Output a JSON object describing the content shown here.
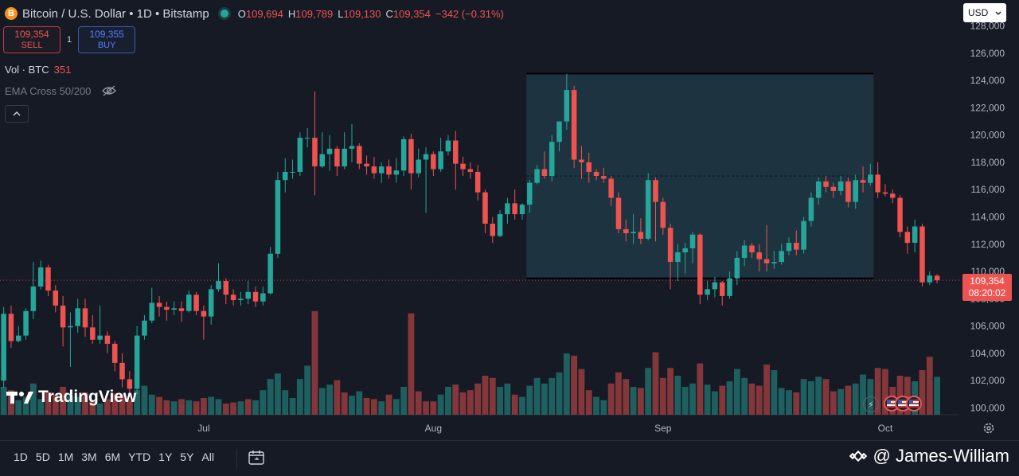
{
  "header": {
    "coin_letter": "B",
    "title": "Bitcoin / U.S. Dollar • 1D • Bitstamp",
    "ohlc": [
      {
        "key": "O",
        "value": "109,694"
      },
      {
        "key": "H",
        "value": "109,789"
      },
      {
        "key": "L",
        "value": "109,130"
      },
      {
        "key": "C",
        "value": "109,354"
      }
    ],
    "change": "−342 (−0.31%)"
  },
  "trade": {
    "sell_price": "109,354",
    "sell_label": "SELL",
    "spread": "1",
    "buy_price": "109,355",
    "buy_label": "BUY"
  },
  "indicators": {
    "vol_label": "Vol · BTC",
    "vol_value": "351",
    "ema_label": "EMA Cross 50/200"
  },
  "currency": "USD",
  "price_tag": {
    "price": "109,354",
    "countdown": "08:20:02"
  },
  "watermark": "TradingView",
  "time_ranges": [
    "1D",
    "5D",
    "1M",
    "3M",
    "6M",
    "YTD",
    "1Y",
    "5Y",
    "All"
  ],
  "credit": "@ James-William",
  "colors": {
    "up": "#26a69a",
    "down": "#ef5350",
    "box": "#1e3a45",
    "bg": "#161a25"
  },
  "chart_data": {
    "type": "candlestick",
    "y_ticks": [
      100000,
      102000,
      104000,
      106000,
      108000,
      110000,
      112000,
      114000,
      116000,
      118000,
      120000,
      122000,
      124000,
      126000,
      128000
    ],
    "y_tick_labels": [
      "100,000",
      "102,000",
      "104,000",
      "106,000",
      "108,000",
      "110,000",
      "112,000",
      "114,000",
      "116,000",
      "118,000",
      "120,000",
      "122,000",
      "124,000",
      "126,000",
      "128,000"
    ],
    "ylim": [
      99500,
      128500
    ],
    "x_labels": [
      {
        "label": "Jul",
        "index": 27
      },
      {
        "label": "Aug",
        "index": 58
      },
      {
        "label": "Sep",
        "index": 89
      },
      {
        "label": "Oct",
        "index": 119
      }
    ],
    "x_range": [
      -0.5,
      129
    ],
    "last_price": 109354,
    "box": {
      "start_index": 71,
      "end_index": 117,
      "top": 124500,
      "bottom": 109500,
      "mid": 117000
    },
    "candles": [
      [
        102000,
        106900,
        101500,
        107400
      ],
      [
        106900,
        104900,
        104400,
        107500
      ],
      [
        104900,
        105300,
        104800,
        106000
      ],
      [
        105300,
        107100,
        105000,
        107300
      ],
      [
        107100,
        108900,
        106500,
        110700
      ],
      [
        108900,
        110300,
        108700,
        110800
      ],
      [
        110300,
        108600,
        108200,
        110500
      ],
      [
        108600,
        107500,
        107000,
        109000
      ],
      [
        107500,
        105900,
        104500,
        108200
      ],
      [
        105900,
        106000,
        103000,
        107000
      ],
      [
        106000,
        107300,
        105500,
        108000
      ],
      [
        107300,
        105900,
        105200,
        108000
      ],
      [
        105900,
        105000,
        104700,
        106800
      ],
      [
        105000,
        105300,
        104700,
        107500
      ],
      [
        105300,
        104700,
        104000,
        105600
      ],
      [
        104700,
        103300,
        102700,
        104900
      ],
      [
        103300,
        102100,
        101500,
        104000
      ],
      [
        102100,
        101400,
        100800,
        102700
      ],
      [
        101400,
        105300,
        101000,
        106000
      ],
      [
        105300,
        106400,
        105000,
        106800
      ],
      [
        106400,
        107700,
        106200,
        108800
      ],
      [
        107700,
        107400,
        106700,
        108200
      ],
      [
        107400,
        107200,
        106400,
        107800
      ],
      [
        107200,
        107300,
        106800,
        107800
      ],
      [
        107300,
        107100,
        106300,
        107800
      ],
      [
        107100,
        108300,
        107000,
        108600
      ],
      [
        108300,
        107100,
        106800,
        108500
      ],
      [
        107100,
        106700,
        105000,
        107500
      ],
      [
        106700,
        108700,
        106100,
        109000
      ],
      [
        108700,
        109300,
        108500,
        110600
      ],
      [
        109300,
        108300,
        107600,
        109500
      ],
      [
        108300,
        107900,
        107500,
        108700
      ],
      [
        107900,
        108000,
        107500,
        108500
      ],
      [
        108000,
        108500,
        107600,
        109300
      ],
      [
        108500,
        107800,
        107400,
        108900
      ],
      [
        107800,
        108400,
        107500,
        108900
      ],
      [
        108400,
        111300,
        108300,
        111800
      ],
      [
        111300,
        116700,
        111000,
        117300
      ],
      [
        116700,
        117300,
        115800,
        118300
      ],
      [
        117300,
        117300,
        116800,
        118200
      ],
      [
        117300,
        119800,
        117000,
        120200
      ],
      [
        119800,
        119800,
        119100,
        120500
      ],
      [
        119800,
        117700,
        115600,
        123200
      ],
      [
        117700,
        118600,
        117600,
        120200
      ],
      [
        118600,
        119000,
        117400,
        120000
      ],
      [
        119000,
        117700,
        117000,
        119200
      ],
      [
        117700,
        119000,
        117500,
        120200
      ],
      [
        119000,
        119200,
        118000,
        120800
      ],
      [
        119200,
        117900,
        117500,
        119400
      ],
      [
        117900,
        117700,
        117100,
        118500
      ],
      [
        117700,
        117200,
        116800,
        118400
      ],
      [
        117200,
        117700,
        116500,
        118000
      ],
      [
        117700,
        117100,
        116800,
        118200
      ],
      [
        117100,
        117400,
        116500,
        118300
      ],
      [
        117400,
        119700,
        117000,
        119900
      ],
      [
        119700,
        117200,
        116000,
        120100
      ],
      [
        117200,
        118200,
        116900,
        119000
      ],
      [
        118200,
        118600,
        114300,
        119100
      ],
      [
        118600,
        117500,
        117000,
        118800
      ],
      [
        117500,
        118800,
        117300,
        119800
      ],
      [
        118800,
        119600,
        118500,
        120000
      ],
      [
        119600,
        117900,
        116000,
        120300
      ],
      [
        117900,
        117500,
        117000,
        118400
      ],
      [
        117500,
        117300,
        116800,
        118000
      ],
      [
        117300,
        115800,
        115200,
        117800
      ],
      [
        115800,
        113500,
        112800,
        116000
      ],
      [
        113500,
        112600,
        112100,
        114000
      ],
      [
        112600,
        114200,
        112500,
        114500
      ],
      [
        114200,
        115000,
        113500,
        115400
      ],
      [
        115000,
        114200,
        113800,
        116000
      ],
      [
        114200,
        114900,
        113800,
        115000
      ],
      [
        114900,
        116500,
        114300,
        116700
      ],
      [
        116500,
        117500,
        116400,
        117800
      ],
      [
        117500,
        117000,
        116800,
        118800
      ],
      [
        117000,
        119500,
        116600,
        120000
      ],
      [
        119500,
        121000,
        118800,
        121000
      ],
      [
        121000,
        123300,
        120400,
        124500
      ],
      [
        123300,
        118200,
        117600,
        123600
      ],
      [
        118200,
        118000,
        116800,
        119200
      ],
      [
        118000,
        117300,
        116500,
        118700
      ],
      [
        117300,
        117000,
        116700,
        117500
      ],
      [
        117000,
        116800,
        116500,
        117600
      ],
      [
        116800,
        115400,
        114800,
        117000
      ],
      [
        115400,
        113100,
        112800,
        115800
      ],
      [
        113100,
        112800,
        112200,
        113800
      ],
      [
        112800,
        112900,
        112000,
        114200
      ],
      [
        112900,
        112400,
        112000,
        113900
      ],
      [
        112400,
        116700,
        112300,
        117200
      ],
      [
        116700,
        115100,
        112200,
        116900
      ],
      [
        115100,
        113200,
        112700,
        115400
      ],
      [
        113200,
        110700,
        108700,
        113500
      ],
      [
        110700,
        111400,
        109300,
        112000
      ],
      [
        111400,
        111700,
        109800,
        112100
      ],
      [
        111700,
        112700,
        110600,
        112900
      ],
      [
        112700,
        108300,
        107600,
        112800
      ],
      [
        108300,
        108700,
        107900,
        109300
      ],
      [
        108700,
        109200,
        108100,
        109600
      ],
      [
        109200,
        108200,
        107500,
        109300
      ],
      [
        108200,
        109500,
        108000,
        110000
      ],
      [
        109500,
        111000,
        109000,
        111500
      ],
      [
        111000,
        111900,
        110400,
        112300
      ],
      [
        111900,
        111400,
        111000,
        112100
      ],
      [
        111400,
        110900,
        110000,
        112000
      ],
      [
        110900,
        110600,
        110000,
        113400
      ],
      [
        110600,
        110700,
        110200,
        111500
      ],
      [
        110700,
        111500,
        110500,
        112000
      ],
      [
        111500,
        112100,
        111200,
        112500
      ],
      [
        112100,
        111600,
        111200,
        113000
      ],
      [
        111600,
        113700,
        111300,
        114000
      ],
      [
        113700,
        115400,
        113300,
        115800
      ],
      [
        115400,
        116600,
        114900,
        116900
      ],
      [
        116600,
        116200,
        115800,
        117000
      ],
      [
        116200,
        115900,
        115400,
        116500
      ],
      [
        115900,
        116600,
        115600,
        117000
      ],
      [
        116600,
        115100,
        114700,
        116900
      ],
      [
        115100,
        116700,
        114600,
        117100
      ],
      [
        116700,
        116500,
        115800,
        117700
      ],
      [
        116500,
        117100,
        116300,
        117900
      ],
      [
        117100,
        115800,
        115400,
        118000
      ],
      [
        115800,
        115700,
        115500,
        116400
      ],
      [
        115700,
        115400,
        115000,
        116000
      ],
      [
        115400,
        112900,
        112500,
        115600
      ],
      [
        112900,
        112100,
        111300,
        113300
      ],
      [
        112100,
        113300,
        111400,
        113800
      ],
      [
        113300,
        109200,
        108900,
        113500
      ],
      [
        109200,
        109700,
        109000,
        110000
      ],
      [
        109694,
        109354,
        109130,
        109789
      ]
    ],
    "volumes": [
      [
        2.5,
        "u"
      ],
      [
        2.2,
        "d"
      ],
      [
        1.3,
        "u"
      ],
      [
        1.6,
        "u"
      ],
      [
        2.8,
        "u"
      ],
      [
        1.4,
        "u"
      ],
      [
        2.0,
        "d"
      ],
      [
        1.8,
        "d"
      ],
      [
        2.5,
        "d"
      ],
      [
        1.7,
        "u"
      ],
      [
        1.6,
        "u"
      ],
      [
        2.0,
        "d"
      ],
      [
        1.3,
        "d"
      ],
      [
        1.0,
        "u"
      ],
      [
        1.4,
        "d"
      ],
      [
        1.9,
        "d"
      ],
      [
        1.9,
        "d"
      ],
      [
        1.3,
        "d"
      ],
      [
        2.2,
        "u"
      ],
      [
        2.6,
        "u"
      ],
      [
        1.8,
        "u"
      ],
      [
        1.6,
        "d"
      ],
      [
        1.3,
        "d"
      ],
      [
        1.2,
        "u"
      ],
      [
        1.4,
        "d"
      ],
      [
        1.3,
        "u"
      ],
      [
        1.2,
        "d"
      ],
      [
        1.5,
        "d"
      ],
      [
        1.6,
        "u"
      ],
      [
        1.4,
        "u"
      ],
      [
        1.0,
        "d"
      ],
      [
        1.1,
        "d"
      ],
      [
        1.2,
        "u"
      ],
      [
        1.4,
        "d"
      ],
      [
        1.3,
        "u"
      ],
      [
        2.2,
        "u"
      ],
      [
        3.2,
        "u"
      ],
      [
        3.7,
        "u"
      ],
      [
        2.2,
        "u"
      ],
      [
        1.5,
        "u"
      ],
      [
        3.2,
        "u"
      ],
      [
        4.4,
        "u"
      ],
      [
        9.3,
        "d"
      ],
      [
        2.4,
        "u"
      ],
      [
        2.7,
        "u"
      ],
      [
        3.1,
        "d"
      ],
      [
        2.0,
        "d"
      ],
      [
        1.7,
        "u"
      ],
      [
        2.1,
        "u"
      ],
      [
        1.5,
        "d"
      ],
      [
        1.4,
        "d"
      ],
      [
        1.2,
        "u"
      ],
      [
        1.8,
        "d"
      ],
      [
        1.4,
        "u"
      ],
      [
        2.5,
        "u"
      ],
      [
        9.1,
        "d"
      ],
      [
        2.1,
        "d"
      ],
      [
        1.2,
        "d"
      ],
      [
        1.2,
        "d"
      ],
      [
        1.8,
        "u"
      ],
      [
        2.5,
        "u"
      ],
      [
        2.7,
        "d"
      ],
      [
        2.0,
        "d"
      ],
      [
        2.2,
        "d"
      ],
      [
        2.8,
        "d"
      ],
      [
        3.5,
        "d"
      ],
      [
        3.3,
        "d"
      ],
      [
        2.5,
        "u"
      ],
      [
        2.8,
        "u"
      ],
      [
        1.8,
        "d"
      ],
      [
        1.6,
        "u"
      ],
      [
        2.6,
        "u"
      ],
      [
        3.3,
        "u"
      ],
      [
        2.8,
        "u"
      ],
      [
        3.3,
        "u"
      ],
      [
        3.8,
        "u"
      ],
      [
        5.5,
        "u"
      ],
      [
        5.3,
        "d"
      ],
      [
        4.1,
        "d"
      ],
      [
        2.2,
        "d"
      ],
      [
        1.6,
        "u"
      ],
      [
        1.3,
        "u"
      ],
      [
        2.8,
        "d"
      ],
      [
        3.8,
        "d"
      ],
      [
        3.2,
        "d"
      ],
      [
        2.5,
        "u"
      ],
      [
        2.4,
        "d"
      ],
      [
        4.2,
        "u"
      ],
      [
        5.6,
        "d"
      ],
      [
        3.3,
        "d"
      ],
      [
        4.2,
        "d"
      ],
      [
        3.5,
        "u"
      ],
      [
        2.5,
        "u"
      ],
      [
        2.8,
        "u"
      ],
      [
        4.6,
        "d"
      ],
      [
        2.7,
        "u"
      ],
      [
        2.1,
        "u"
      ],
      [
        2.6,
        "d"
      ],
      [
        3.0,
        "u"
      ],
      [
        4.1,
        "u"
      ],
      [
        3.3,
        "u"
      ],
      [
        2.8,
        "d"
      ],
      [
        2.6,
        "d"
      ],
      [
        4.5,
        "d"
      ],
      [
        4.0,
        "u"
      ],
      [
        2.4,
        "u"
      ],
      [
        2.2,
        "u"
      ],
      [
        2.0,
        "d"
      ],
      [
        3.2,
        "u"
      ],
      [
        3.0,
        "u"
      ],
      [
        3.4,
        "u"
      ],
      [
        3.2,
        "d"
      ],
      [
        2.1,
        "d"
      ],
      [
        2.3,
        "u"
      ],
      [
        2.6,
        "d"
      ],
      [
        2.8,
        "u"
      ],
      [
        3.6,
        "u"
      ],
      [
        3.2,
        "u"
      ],
      [
        4.2,
        "d"
      ],
      [
        4.1,
        "d"
      ],
      [
        2.5,
        "d"
      ],
      [
        3.5,
        "d"
      ],
      [
        3.4,
        "d"
      ],
      [
        3.0,
        "u"
      ],
      [
        4.0,
        "d"
      ],
      [
        5.2,
        "d"
      ],
      [
        3.4,
        "u"
      ]
    ]
  }
}
